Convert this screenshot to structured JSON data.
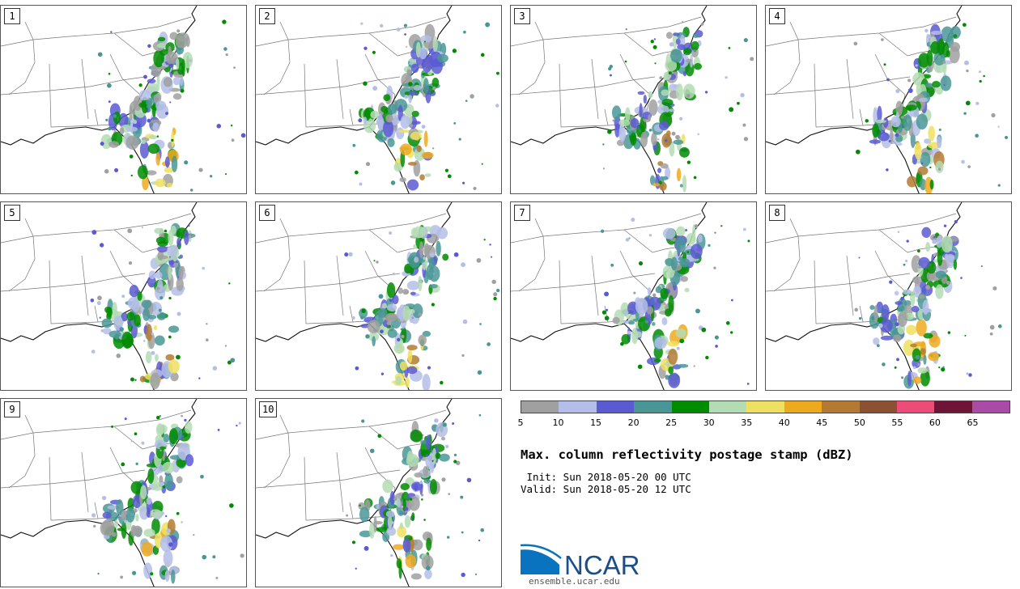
{
  "panels": [
    {
      "label": "1"
    },
    {
      "label": "2"
    },
    {
      "label": "3"
    },
    {
      "label": "4"
    },
    {
      "label": "5"
    },
    {
      "label": "6"
    },
    {
      "label": "7"
    },
    {
      "label": "8"
    },
    {
      "label": "9"
    },
    {
      "label": "10"
    }
  ],
  "colorbar": {
    "colors": [
      "#a0a0a0",
      "#b4bee8",
      "#5a5ad2",
      "#4a9696",
      "#008c00",
      "#b4dcb4",
      "#eee060",
      "#eeaa1e",
      "#b47a32",
      "#8c5032",
      "#ee4c78",
      "#6e1437",
      "#aa4ba5"
    ],
    "labels": [
      "5",
      "10",
      "15",
      "20",
      "25",
      "30",
      "35",
      "40",
      "45",
      "50",
      "55",
      "60",
      "65"
    ]
  },
  "title": "Max. column reflectivity postage stamp (dBZ)",
  "init": " Init: Sun 2018-05-20 00 UTC",
  "valid": "Valid: Sun 2018-05-20 12 UTC",
  "logo": {
    "text": "NCAR",
    "url": "ensemble.ucar.edu"
  }
}
